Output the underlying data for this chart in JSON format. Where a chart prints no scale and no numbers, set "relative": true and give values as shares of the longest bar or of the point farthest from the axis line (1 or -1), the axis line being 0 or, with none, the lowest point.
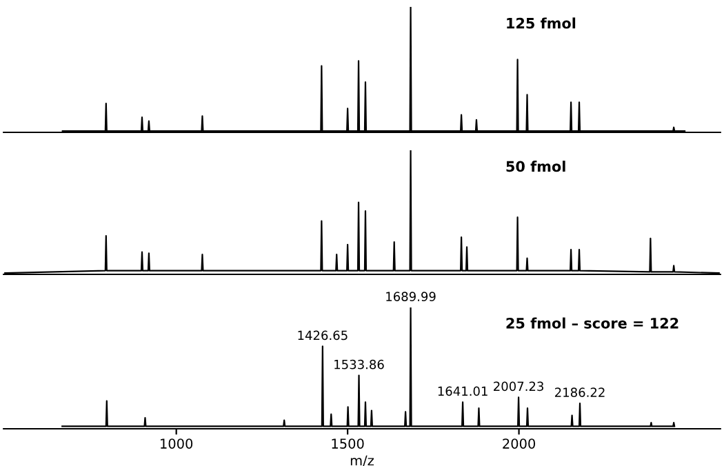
{
  "chart_data": [
    {
      "type": "line",
      "title": "125 fmol",
      "relative": true,
      "xlim": [
        496,
        2588
      ],
      "tick_labels": false,
      "series": [
        {
          "color": "#000000",
          "x": [
            668,
            793,
            795,
            797,
            898,
            900,
            902,
            918,
            920,
            922,
            1074,
            1076,
            1078,
            1422,
            1424,
            1426,
            1498,
            1500,
            1502,
            1530,
            1532,
            1534,
            1550,
            1552,
            1554,
            1682,
            1684,
            1686,
            1830,
            1832,
            1834,
            1874,
            1876,
            1878,
            1994,
            1996,
            1998,
            2022,
            2024,
            2026,
            2150,
            2152,
            2154,
            2174,
            2176,
            2178,
            2450,
            2452,
            2454,
            2484
          ],
          "values": [
            0.01,
            0.01,
            0.23,
            0.01,
            0.01,
            0.12,
            0.01,
            0.01,
            0.09,
            0.01,
            0.01,
            0.13,
            0.01,
            0.01,
            0.53,
            0.01,
            0.01,
            0.19,
            0.01,
            0.01,
            0.57,
            0.01,
            0.01,
            0.4,
            0.01,
            0.01,
            1.0,
            0.01,
            0.01,
            0.14,
            0.01,
            0.01,
            0.1,
            0.01,
            0.01,
            0.58,
            0.01,
            0.01,
            0.3,
            0.01,
            0.01,
            0.24,
            0.01,
            0.01,
            0.24,
            0.01,
            0.01,
            0.04,
            0.01,
            0.01
          ]
        }
      ]
    },
    {
      "type": "line",
      "title": "50 fmol",
      "relative": true,
      "xlim": [
        496,
        2588
      ],
      "tick_labels": false,
      "series": [
        {
          "color": "#000000",
          "x": [
            500,
            793,
            795,
            797,
            898,
            900,
            902,
            918,
            920,
            922,
            1074,
            1076,
            1078,
            1422,
            1424,
            1426,
            1466,
            1468,
            1470,
            1498,
            1500,
            1502,
            1530,
            1532,
            1534,
            1550,
            1552,
            1554,
            1634,
            1636,
            1638,
            1682,
            1684,
            1686,
            1830,
            1832,
            1834,
            1846,
            1848,
            1850,
            1994,
            1996,
            1998,
            2022,
            2024,
            2026,
            2150,
            2152,
            2154,
            2174,
            2176,
            2178,
            2382,
            2384,
            2386,
            2450,
            2452,
            2454,
            2584
          ],
          "values": [
            0.01,
            0.03,
            0.31,
            0.03,
            0.03,
            0.18,
            0.03,
            0.03,
            0.17,
            0.03,
            0.03,
            0.16,
            0.03,
            0.03,
            0.43,
            0.03,
            0.03,
            0.16,
            0.03,
            0.03,
            0.24,
            0.03,
            0.03,
            0.58,
            0.03,
            0.03,
            0.51,
            0.03,
            0.03,
            0.26,
            0.03,
            0.03,
            1.0,
            0.03,
            0.03,
            0.3,
            0.03,
            0.03,
            0.22,
            0.03,
            0.03,
            0.46,
            0.03,
            0.03,
            0.13,
            0.03,
            0.03,
            0.2,
            0.03,
            0.03,
            0.2,
            0.03,
            0.02,
            0.29,
            0.02,
            0.02,
            0.07,
            0.02,
            0.01
          ]
        }
      ]
    },
    {
      "type": "line",
      "title": "25 fmol – score = 122",
      "relative": true,
      "xlim": [
        496,
        2588
      ],
      "xticks": [
        1000,
        1500,
        2000
      ],
      "xlabel": "m/z",
      "tick_labels": "x",
      "series": [
        {
          "color": "#000000",
          "x": [
            667,
            795,
            797,
            799,
            907,
            909,
            911,
            1313,
            1315,
            1317,
            1425,
            1427,
            1429,
            1450,
            1452,
            1454,
            1499,
            1501,
            1503,
            1531,
            1533,
            1535,
            1550,
            1552,
            1554,
            1568,
            1570,
            1572,
            1667,
            1669,
            1671,
            1682,
            1684,
            1686,
            1834,
            1836,
            1838,
            1881,
            1883,
            1885,
            1997,
            1999,
            2001,
            2023,
            2025,
            2027,
            2153,
            2155,
            2157,
            2176,
            2178,
            2180,
            2230,
            2384,
            2386,
            2388,
            2450,
            2452,
            2454
          ],
          "values": [
            0.02,
            0.02,
            0.23,
            0.02,
            0.02,
            0.09,
            0.02,
            0.02,
            0.07,
            0.02,
            0.02,
            0.68,
            0.02,
            0.02,
            0.12,
            0.02,
            0.02,
            0.18,
            0.02,
            0.02,
            0.44,
            0.02,
            0.02,
            0.22,
            0.02,
            0.02,
            0.15,
            0.02,
            0.02,
            0.14,
            0.02,
            0.02,
            1.0,
            0.02,
            0.02,
            0.22,
            0.02,
            0.02,
            0.17,
            0.02,
            0.02,
            0.26,
            0.02,
            0.02,
            0.17,
            0.02,
            0.02,
            0.11,
            0.02,
            0.02,
            0.21,
            0.02,
            0.02,
            0.02,
            0.05,
            0.02,
            0.02,
            0.05,
            0.02
          ]
        }
      ],
      "annotations": [
        {
          "text": "1426.65",
          "x": 1427,
          "y": 0.68
        },
        {
          "text": "1533.86",
          "x": 1533,
          "y": 0.44
        },
        {
          "text": "1689.99",
          "x": 1684,
          "y": 1.0
        },
        {
          "text": "1641.01",
          "x": 1836,
          "y": 0.22
        },
        {
          "text": "2007.23",
          "x": 1999,
          "y": 0.26
        },
        {
          "text": "2186.22",
          "x": 2178,
          "y": 0.21
        }
      ]
    }
  ]
}
